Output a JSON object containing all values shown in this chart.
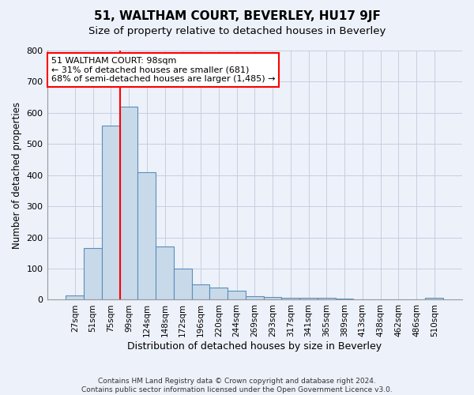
{
  "title": "51, WALTHAM COURT, BEVERLEY, HU17 9JF",
  "subtitle": "Size of property relative to detached houses in Beverley",
  "xlabel": "Distribution of detached houses by size in Beverley",
  "ylabel": "Number of detached properties",
  "categories": [
    "27sqm",
    "51sqm",
    "75sqm",
    "99sqm",
    "124sqm",
    "148sqm",
    "172sqm",
    "196sqm",
    "220sqm",
    "244sqm",
    "269sqm",
    "293sqm",
    "317sqm",
    "341sqm",
    "365sqm",
    "389sqm",
    "413sqm",
    "438sqm",
    "462sqm",
    "486sqm",
    "510sqm"
  ],
  "values": [
    15,
    165,
    560,
    620,
    410,
    170,
    100,
    50,
    38,
    28,
    12,
    10,
    7,
    5,
    5,
    3,
    0,
    0,
    0,
    0,
    5
  ],
  "bar_color": "#c8daea",
  "bar_edge_color": "#5b8db8",
  "grid_color": "#c5cfe0",
  "background_color": "#edf1fa",
  "vline_x_index": 3,
  "annotation_text": "51 WALTHAM COURT: 98sqm\n← 31% of detached houses are smaller (681)\n68% of semi-detached houses are larger (1,485) →",
  "ylim": [
    0,
    800
  ],
  "yticks": [
    0,
    100,
    200,
    300,
    400,
    500,
    600,
    700,
    800
  ],
  "footnote": "Contains HM Land Registry data © Crown copyright and database right 2024.\nContains public sector information licensed under the Open Government Licence v3.0."
}
